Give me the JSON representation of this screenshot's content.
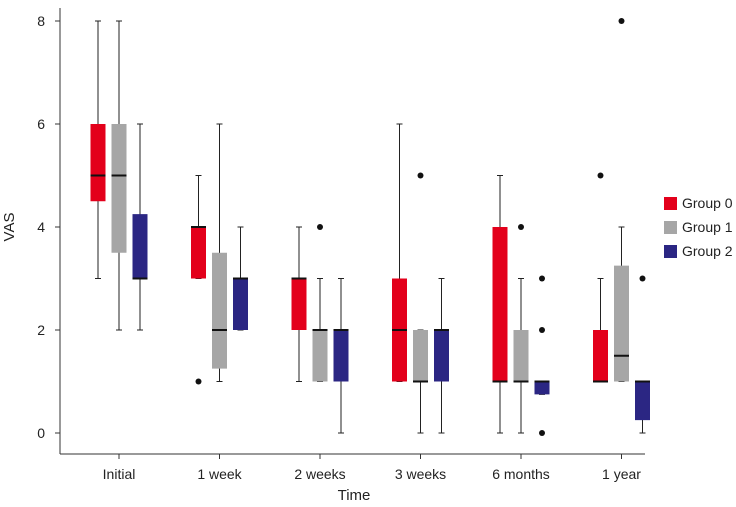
{
  "chart_data": {
    "type": "boxplot",
    "title": "",
    "xlabel": "Time",
    "ylabel": "VAS",
    "ylim": [
      0,
      8
    ],
    "yticks": [
      0,
      2,
      4,
      6,
      8
    ],
    "categories": [
      "Initial",
      "1 week",
      "2 weeks",
      "3 weeks",
      "6 months",
      "1 year"
    ],
    "legend_position": "right",
    "series": [
      {
        "name": "Group 0",
        "color": "#e3001b",
        "boxes": [
          {
            "whisker_low": 3,
            "q1": 4.5,
            "median": 5,
            "q3": 6,
            "whisker_high": 8,
            "outliers": []
          },
          {
            "whisker_low": 3,
            "q1": 3,
            "median": 4,
            "q3": 4,
            "whisker_high": 5,
            "outliers": [
              1
            ]
          },
          {
            "whisker_low": 1,
            "q1": 2,
            "median": 3,
            "q3": 3,
            "whisker_high": 4,
            "outliers": []
          },
          {
            "whisker_low": 1,
            "q1": 1,
            "median": 2,
            "q3": 3,
            "whisker_high": 6,
            "outliers": []
          },
          {
            "whisker_low": 0,
            "q1": 1,
            "median": 1,
            "q3": 4,
            "whisker_high": 5,
            "outliers": []
          },
          {
            "whisker_low": 1,
            "q1": 1,
            "median": 1,
            "q3": 2,
            "whisker_high": 3,
            "outliers": [
              5
            ]
          }
        ]
      },
      {
        "name": "Group 1",
        "color": "#a6a6a6",
        "boxes": [
          {
            "whisker_low": 2,
            "q1": 3.5,
            "median": 5,
            "q3": 6,
            "whisker_high": 8,
            "outliers": []
          },
          {
            "whisker_low": 1,
            "q1": 1.25,
            "median": 2,
            "q3": 3.5,
            "whisker_high": 6,
            "outliers": []
          },
          {
            "whisker_low": 1,
            "q1": 1,
            "median": 2,
            "q3": 2,
            "whisker_high": 3,
            "outliers": [
              4
            ]
          },
          {
            "whisker_low": 0,
            "q1": 1,
            "median": 1,
            "q3": 2,
            "whisker_high": 2,
            "outliers": [
              5
            ]
          },
          {
            "whisker_low": 0,
            "q1": 1,
            "median": 1,
            "q3": 2,
            "whisker_high": 3,
            "outliers": [
              4
            ]
          },
          {
            "whisker_low": 1,
            "q1": 1,
            "median": 1.5,
            "q3": 3.25,
            "whisker_high": 4,
            "outliers": [
              8
            ]
          }
        ]
      },
      {
        "name": "Group 2",
        "color": "#2b2683",
        "boxes": [
          {
            "whisker_low": 2,
            "q1": 3,
            "median": 3,
            "q3": 4.25,
            "whisker_high": 6,
            "outliers": []
          },
          {
            "whisker_low": 2,
            "q1": 2,
            "median": 3,
            "q3": 3,
            "whisker_high": 4,
            "outliers": []
          },
          {
            "whisker_low": 0,
            "q1": 1,
            "median": 2,
            "q3": 2,
            "whisker_high": 3,
            "outliers": []
          },
          {
            "whisker_low": 0,
            "q1": 1,
            "median": 2,
            "q3": 2,
            "whisker_high": 3,
            "outliers": []
          },
          {
            "whisker_low": 0.75,
            "q1": 0.75,
            "median": 1,
            "q3": 1,
            "whisker_high": 1,
            "outliers": [
              0,
              2,
              3
            ]
          },
          {
            "whisker_low": 0,
            "q1": 0.25,
            "median": 1,
            "q3": 1,
            "whisker_high": 1,
            "outliers": [
              3
            ]
          }
        ]
      }
    ]
  }
}
